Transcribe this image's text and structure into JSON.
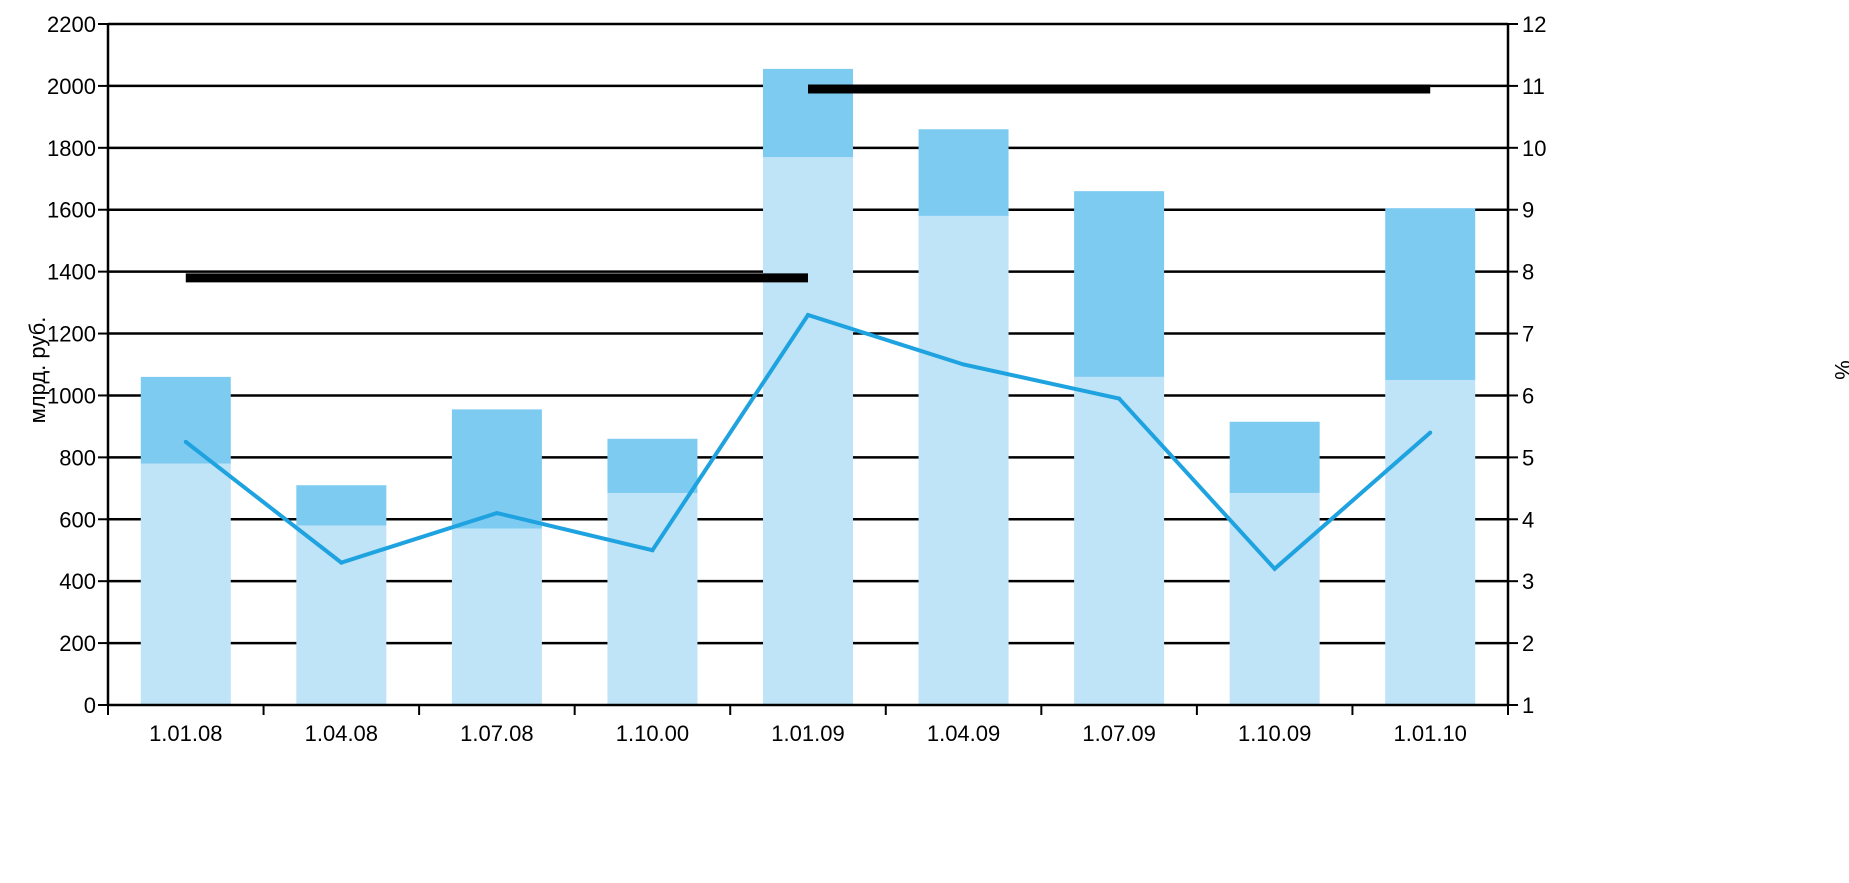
{
  "chart_data": {
    "type": "bar",
    "categories": [
      "1.01.08",
      "1.04.08",
      "1.07.08",
      "1.10.00",
      "1.01.09",
      "1.04.09",
      "1.07.09",
      "1.10.09",
      "1.01.10"
    ],
    "series": [
      {
        "axis": "left",
        "kind": "bar",
        "stack": "a",
        "values": [
          780,
          580,
          570,
          685,
          1770,
          1580,
          1060,
          685,
          1050
        ],
        "color": "#bfe3f7"
      },
      {
        "axis": "left",
        "kind": "bar",
        "stack": "a",
        "values": [
          280,
          130,
          385,
          175,
          285,
          280,
          600,
          230,
          555
        ],
        "color": "#7ecbf2"
      },
      {
        "axis": "right",
        "kind": "line",
        "values": [
          5.25,
          3.3,
          4.1,
          3.5,
          7.3,
          6.5,
          5.95,
          3.2,
          5.4
        ],
        "color": "#1ea3e0"
      },
      {
        "axis": "right",
        "kind": "step",
        "color": "#000000",
        "segments": [
          {
            "from": "1.01.08",
            "to": "1.01.09",
            "value": 7.9
          },
          {
            "from": "1.01.09",
            "to": "1.01.10",
            "value": 10.95
          }
        ]
      }
    ],
    "ylabel": "млрд. руб.",
    "y2label": "%",
    "ylim": [
      0,
      2200
    ],
    "y2lim": [
      1,
      12
    ],
    "yticks": [
      "0",
      "200",
      "400",
      "600",
      "800",
      "1000",
      "1200",
      "1400",
      "1600",
      "1800",
      "2000",
      "2200"
    ],
    "y2ticks": [
      "1",
      "2",
      "3",
      "4",
      "5",
      "6",
      "7",
      "8",
      "9",
      "10",
      "11",
      "12"
    ],
    "grid": true,
    "legend": "none"
  }
}
